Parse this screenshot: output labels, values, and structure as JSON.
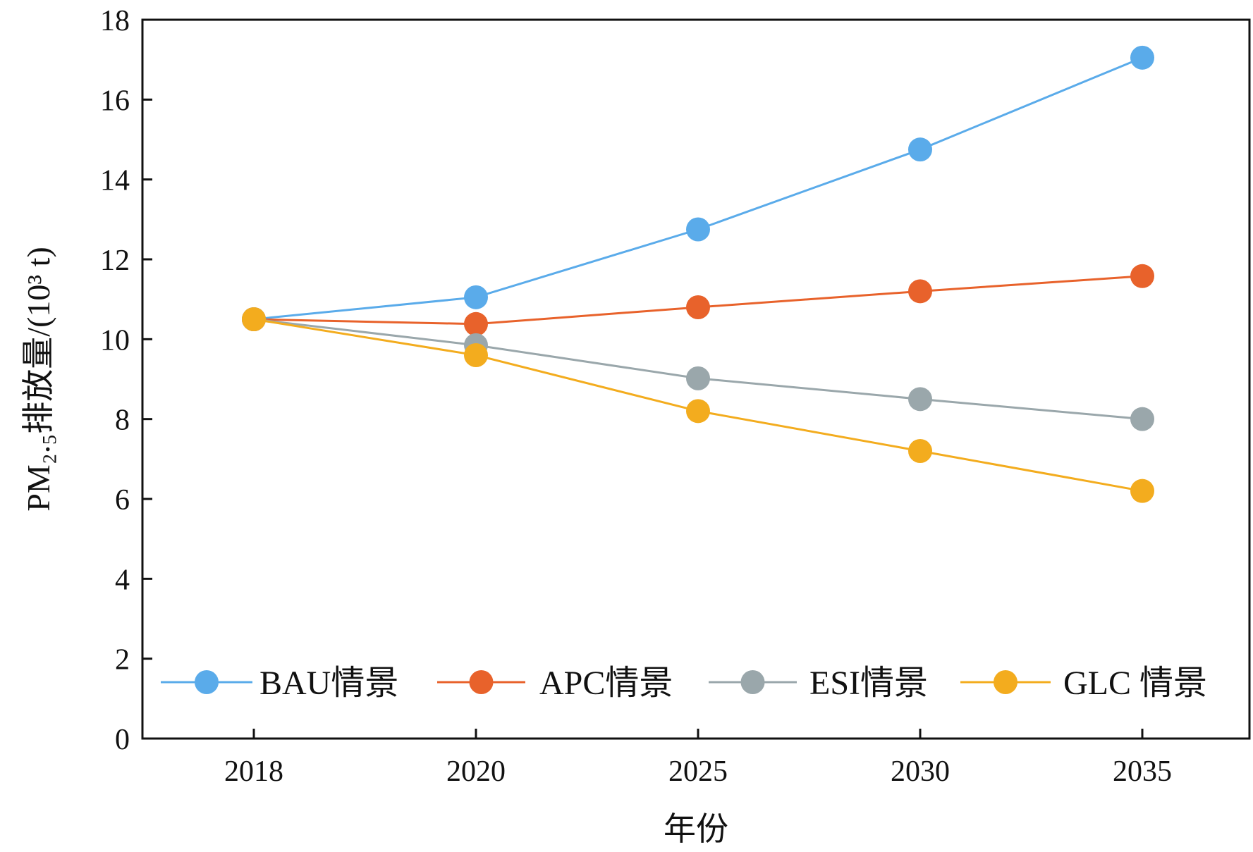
{
  "chart_data": {
    "type": "line",
    "categories": [
      "2018",
      "2020",
      "2025",
      "2030",
      "2035"
    ],
    "xlabel": "年份",
    "ylabel": "PM₂.₅排放量/(10³ t)",
    "ylim": [
      0,
      18
    ],
    "yticks": [
      0,
      2,
      4,
      6,
      8,
      10,
      12,
      14,
      16,
      18
    ],
    "grid": false,
    "legend_position": "bottom",
    "series": [
      {
        "name": "BAU情景",
        "color": "#5aabea",
        "values": [
          10.5,
          11.05,
          12.75,
          14.75,
          17.05
        ]
      },
      {
        "name": "APC情景",
        "color": "#e8622b",
        "values": [
          10.5,
          10.38,
          10.8,
          11.2,
          11.58
        ]
      },
      {
        "name": "ESI情景",
        "color": "#9aa7ab",
        "values": [
          10.5,
          9.85,
          9.02,
          8.5,
          8.0
        ]
      },
      {
        "name": "GLC 情景",
        "color": "#f3ac1e",
        "values": [
          10.5,
          9.6,
          8.2,
          7.2,
          6.2
        ]
      }
    ]
  }
}
